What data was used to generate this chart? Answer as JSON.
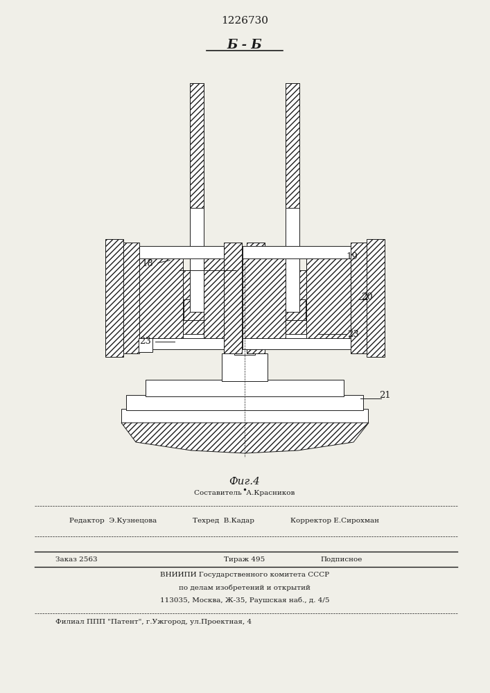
{
  "title_number": "1226730",
  "section_label": "Б - Б",
  "fig_label": "Фиг.4",
  "bg_color": "#f0efe8",
  "line_color": "#1a1a1a",
  "footer": {
    "sostavitel": "Составитель  А.Красников",
    "redaktor": "Редактор  Э.Кузнецова",
    "tehred": "Техред  В.Кадар",
    "korrektor": "Корректор Е.Сирохман",
    "zakaz": "Заказ 2563",
    "tirazh": "Тираж 495",
    "podpisnoe": "Подписное",
    "vnipi1": "ВНИИПИ Государственного комитета СССР",
    "vnipi2": "по делам изобретений и открытий",
    "vnipi3": "113035, Москва, Ж-35, Раушская наб., д. 4/5",
    "filial": "Филиал ППП \"Патент\", г.Ужгород, ул.Проектная, 4"
  }
}
